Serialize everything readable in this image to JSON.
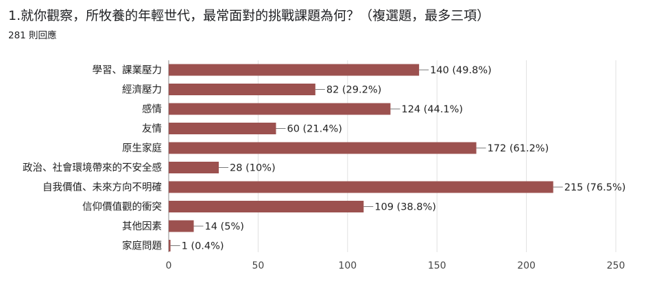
{
  "header": {
    "title": "1.就你觀察，所牧養的年輕世代，最常面對的挑戰課題為何？（複選題，最多三項）",
    "responses": "281 則回應"
  },
  "colors": {
    "bar": "#9c514f",
    "grid": "#e0e0e0",
    "axis": "#888888"
  },
  "chart_data": {
    "type": "bar",
    "orientation": "horizontal",
    "categories": [
      "學習、課業壓力",
      "經濟壓力",
      "感情",
      "友情",
      "原生家庭",
      "政治、社會環境帶來的不安全感",
      "自我價值、未來方向不明確",
      "信仰價值觀的衝突",
      "其他因素",
      "家庭問題"
    ],
    "values": [
      140,
      82,
      124,
      60,
      172,
      28,
      215,
      109,
      14,
      1
    ],
    "data_labels": [
      "140 (49.8%)",
      "82 (29.2%)",
      "124 (44.1%)",
      "60 (21.4%)",
      "172 (61.2%)",
      "28 (10%)",
      "215 (76.5%)",
      "109 (38.8%)",
      "14 (5%)",
      "1 (0.4%)"
    ],
    "xlim": [
      0,
      250
    ],
    "xticks": [
      0,
      50,
      100,
      150,
      200,
      250
    ],
    "grid": true,
    "legend": "none"
  }
}
